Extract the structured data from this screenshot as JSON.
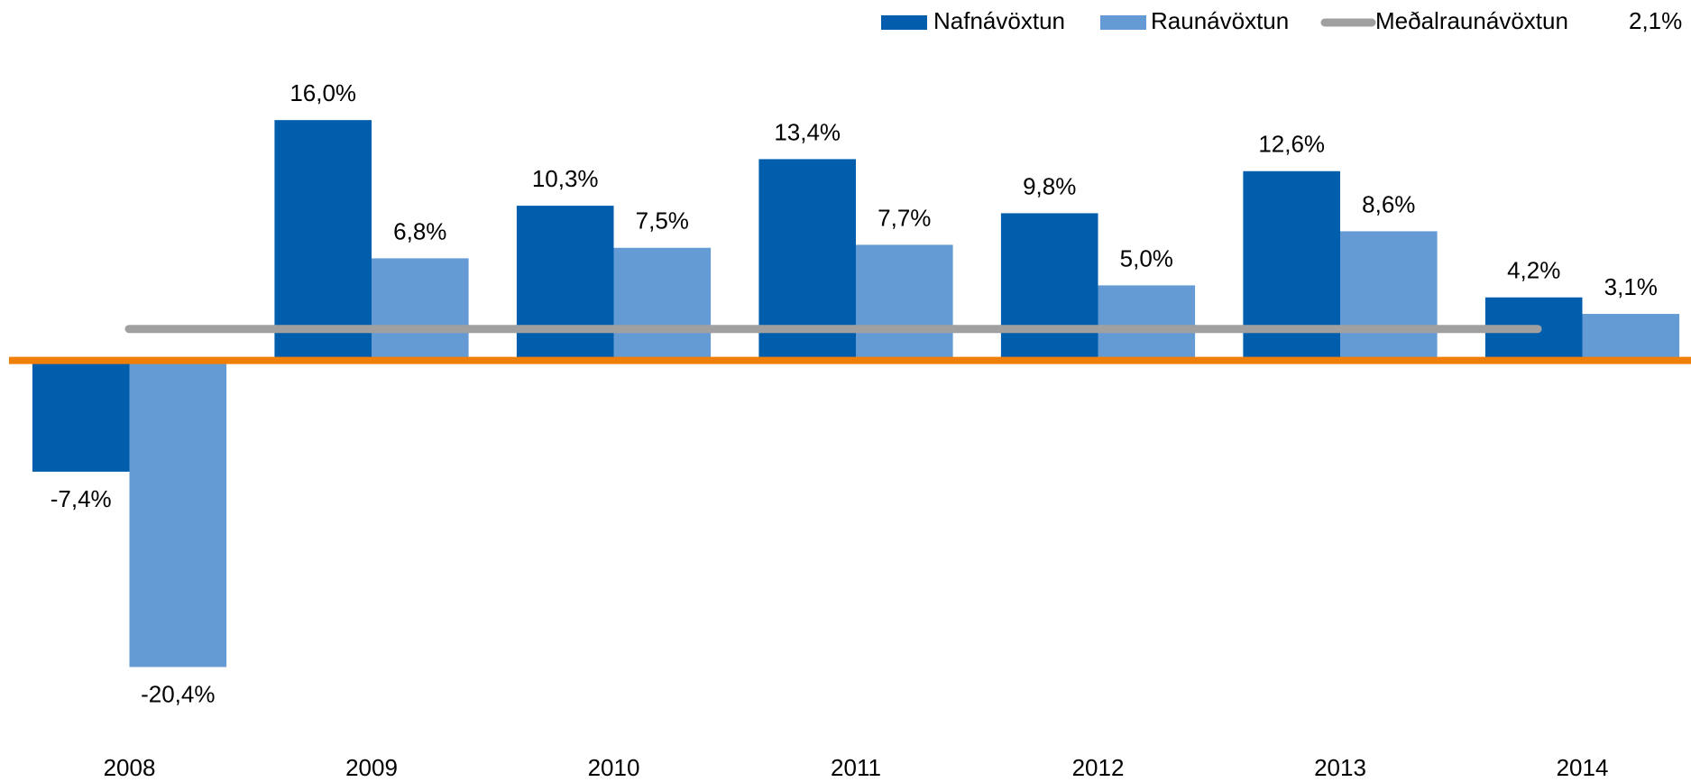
{
  "chart_data": {
    "type": "bar",
    "categories": [
      "2008",
      "2009",
      "2010",
      "2011",
      "2012",
      "2013",
      "2014"
    ],
    "series": [
      {
        "name": "Nafnávöxtun",
        "color": "#005eac",
        "values": [
          -7.4,
          16.0,
          10.3,
          13.4,
          9.8,
          12.6,
          4.2
        ],
        "value_labels": [
          "-7,4%",
          "16,0%",
          "10,3%",
          "13,4%",
          "9,8%",
          "12,6%",
          "4,2%"
        ]
      },
      {
        "name": "Raunávöxtun",
        "color": "#659bd4",
        "values": [
          -20.4,
          6.8,
          7.5,
          7.7,
          5.0,
          8.6,
          3.1
        ],
        "value_labels": [
          "-20,4%",
          "6,8%",
          "7,5%",
          "7,7%",
          "5,0%",
          "8,6%",
          "3,1%"
        ]
      }
    ],
    "average_line": {
      "name": "Meðalraunávöxtun",
      "color": "#a0a0a0",
      "value": 2.1,
      "value_label": "2,1%"
    },
    "zero_line_color": "#f07f09",
    "ylim": [
      -24,
      20
    ],
    "legend": "top-right"
  }
}
